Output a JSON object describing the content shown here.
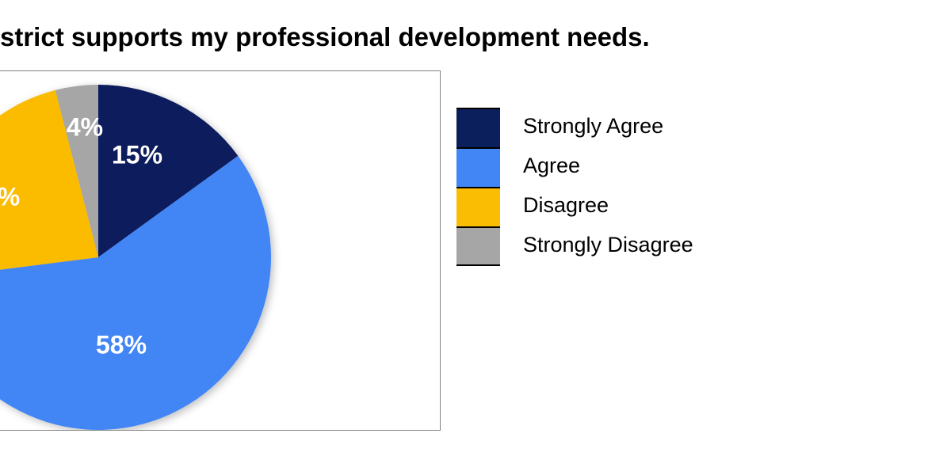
{
  "chart_data": {
    "type": "pie",
    "title": "strict supports my professional development needs.",
    "categories": [
      "Strongly Agree",
      "Agree",
      "Disagree",
      "Strongly Disagree"
    ],
    "values": [
      15,
      58,
      23,
      4
    ],
    "data_labels": [
      "15%",
      "58%",
      "%",
      "4%"
    ],
    "colors": [
      "#0b1f5c",
      "#4285f4",
      "#fbbc04",
      "#a6a6a6"
    ],
    "legend_position": "right",
    "grid": false
  }
}
